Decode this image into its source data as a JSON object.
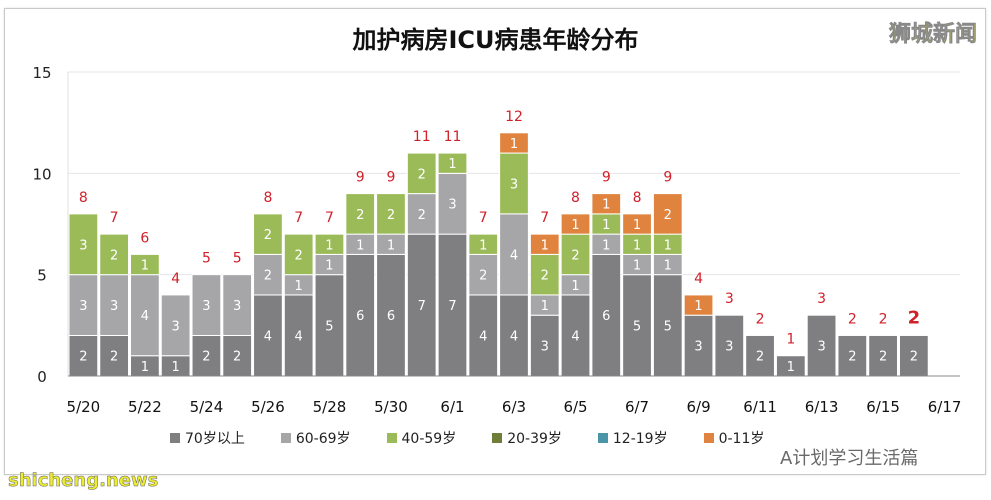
{
  "chart_data": {
    "type": "bar",
    "stacked": true,
    "title": "加护病房ICU病患年龄分布",
    "categories": [
      "5/20",
      "5/21",
      "5/22",
      "5/23",
      "5/24",
      "5/25",
      "5/26",
      "5/27",
      "5/28",
      "5/29",
      "5/30",
      "5/31",
      "6/1",
      "6/2",
      "6/3",
      "6/4",
      "6/5",
      "6/6",
      "6/7",
      "6/8",
      "6/9",
      "6/10",
      "6/11",
      "6/12",
      "6/13",
      "6/14",
      "6/15",
      "6/16",
      "6/17"
    ],
    "tick_labels": [
      "5/20",
      "5/22",
      "5/24",
      "5/26",
      "5/28",
      "5/30",
      "6/1",
      "6/3",
      "6/5",
      "6/7",
      "6/9",
      "6/11",
      "6/13",
      "6/15",
      "6/17"
    ],
    "series": [
      {
        "name": "70岁以上",
        "color": "#7f7e80",
        "values": [
          2,
          2,
          1,
          1,
          2,
          2,
          4,
          4,
          5,
          6,
          6,
          7,
          7,
          4,
          4,
          3,
          4,
          6,
          5,
          5,
          3,
          3,
          2,
          1,
          3,
          2,
          2,
          2,
          0
        ]
      },
      {
        "name": "60-69岁",
        "color": "#a6a6a8",
        "values": [
          3,
          3,
          4,
          3,
          3,
          3,
          2,
          1,
          1,
          1,
          1,
          2,
          3,
          2,
          4,
          1,
          1,
          1,
          1,
          1,
          0,
          0,
          0,
          0,
          0,
          0,
          0,
          0,
          0
        ]
      },
      {
        "name": "40-59岁",
        "color": "#9bbb59",
        "values": [
          3,
          2,
          1,
          0,
          0,
          0,
          2,
          2,
          1,
          2,
          2,
          2,
          1,
          1,
          3,
          2,
          2,
          1,
          1,
          1,
          0,
          0,
          0,
          0,
          0,
          0,
          0,
          0,
          0
        ]
      },
      {
        "name": "20-39岁",
        "color": "#6f7f3a",
        "values": [
          0,
          0,
          0,
          0,
          0,
          0,
          0,
          0,
          0,
          0,
          0,
          0,
          0,
          0,
          0,
          0,
          0,
          0,
          0,
          0,
          0,
          0,
          0,
          0,
          0,
          0,
          0,
          0,
          0
        ]
      },
      {
        "name": "12-19岁",
        "color": "#4a95a8",
        "values": [
          0,
          0,
          0,
          0,
          0,
          0,
          0,
          0,
          0,
          0,
          0,
          0,
          0,
          0,
          0,
          0,
          0,
          0,
          0,
          0,
          0,
          0,
          0,
          0,
          0,
          0,
          0,
          0,
          0
        ]
      },
      {
        "name": "0-11岁",
        "color": "#e0833f",
        "values": [
          0,
          0,
          0,
          0,
          0,
          0,
          0,
          0,
          0,
          0,
          0,
          0,
          0,
          0,
          1,
          1,
          1,
          1,
          1,
          2,
          1,
          0,
          0,
          0,
          0,
          0,
          0,
          0,
          0
        ]
      }
    ],
    "totals": [
      8,
      7,
      6,
      4,
      5,
      5,
      8,
      7,
      7,
      9,
      9,
      11,
      11,
      7,
      12,
      7,
      8,
      9,
      8,
      9,
      4,
      3,
      2,
      1,
      3,
      2,
      2,
      2,
      null
    ],
    "total_label_color": "#d0202a",
    "ylim": [
      0,
      15
    ],
    "yticks": [
      "0",
      "5",
      "10",
      "15"
    ],
    "grid": true,
    "legend_position": "bottom"
  },
  "watermarks": {
    "brand": "狮城新闻",
    "site": "shicheng.news",
    "wechat": "A计划学习生活篇"
  }
}
